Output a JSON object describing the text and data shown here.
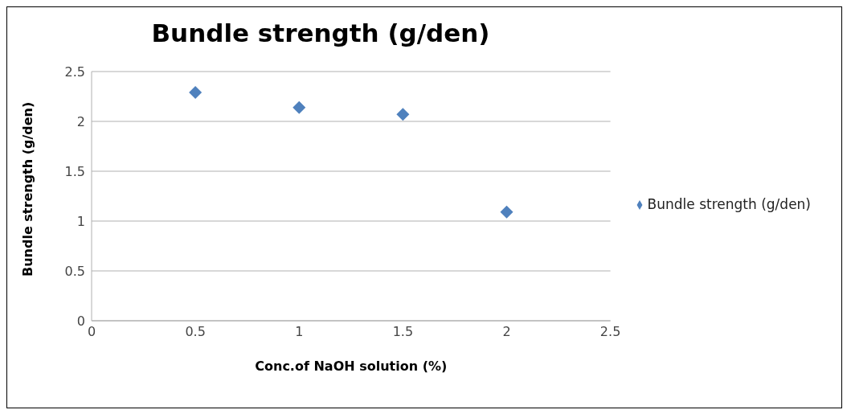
{
  "chart_data": {
    "type": "scatter",
    "title": "Bundle strength (g/den)",
    "xlabel": "Conc.of NaOH solution (%)",
    "ylabel": "Bundle strength (g/den)",
    "x": [
      0.5,
      1,
      1.5,
      2
    ],
    "series": [
      {
        "name": "Bundle strength (g/den)",
        "color": "#4f81bd",
        "values": [
          2.29,
          2.14,
          2.07,
          1.09
        ]
      }
    ],
    "xlim": [
      0,
      2.5
    ],
    "xticks": [
      0,
      0.5,
      1,
      1.5,
      2,
      2.5
    ],
    "ylim": [
      0,
      2.5
    ],
    "yticks": [
      0,
      0.5,
      1,
      1.5,
      2,
      2.5
    ],
    "grid": "y",
    "legend": "right",
    "marker": "diamond"
  }
}
